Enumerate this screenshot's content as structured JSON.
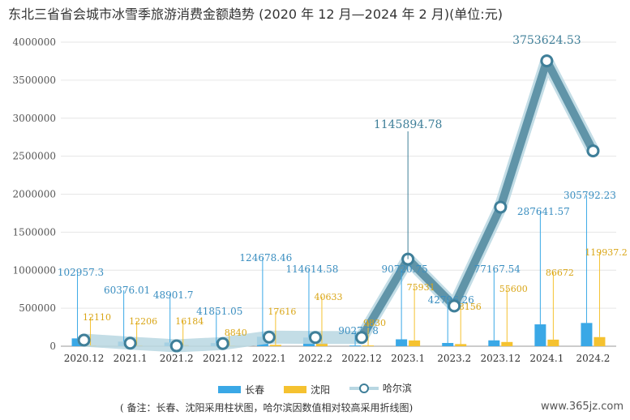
{
  "title": "东北三省省会城市冰雪季旅游消费金额趋势 (2020 年 12 月—2024 年 2 月)(单位:元)",
  "note": "( 备注：长春、沈阳采用柱状图，哈尔滨因数值相对较高采用折线图)",
  "watermark": "www.365jz.com",
  "chart_data": {
    "type": "bar",
    "categories": [
      "2020.12",
      "2021.1",
      "2021.2",
      "2021.12",
      "2022.1",
      "2022.2",
      "2022.12",
      "2023.1",
      "2023.2",
      "2023.12",
      "2024.1",
      "2024.2"
    ],
    "ylim": [
      0,
      4000000
    ],
    "yticks": [
      0,
      500000,
      1000000,
      1500000,
      2000000,
      2500000,
      3000000,
      3500000,
      4000000
    ],
    "legend_position": "bottom",
    "colors": {
      "changchun": "#3aa8e6",
      "shenyang": "#f5c230",
      "harbin_line": "#4f879c",
      "harbin_line_light": "#b8d7e2"
    },
    "series": [
      {
        "name": "长春",
        "kind": "bar",
        "values": [
          102957.3,
          60376.01,
          48901.7,
          41851.05,
          124678.46,
          114614.58,
          9027.78,
          90720.75,
          42796.26,
          77167.54,
          287641.57,
          305792.23
        ],
        "labels": [
          "102957.3",
          "60376.01",
          "48901.7",
          "41851.05",
          "124678.46",
          "114614.58",
          "9027.78",
          "90720.75",
          "42796.26",
          "77167.54",
          "287641.57",
          "305792.23"
        ]
      },
      {
        "name": "沈阳",
        "kind": "bar",
        "values": [
          12110,
          12206,
          16184,
          8840,
          17616,
          40633,
          9830,
          75931,
          28156,
          55600,
          86672,
          119937.2
        ],
        "labels": [
          "12110",
          "12206",
          "16184",
          "8840",
          "17616",
          "40633",
          "9830",
          "75931",
          "28156",
          "55600",
          "86672",
          "119937.2"
        ]
      },
      {
        "name": "哈尔滨",
        "kind": "line",
        "values": [
          80000,
          40000,
          5000,
          35000,
          120000,
          115000,
          115000,
          1145894.78,
          530000,
          1830000,
          3753624.53,
          2570000
        ],
        "labels": [
          "",
          "",
          "",
          "",
          "",
          "",
          "",
          "1145894.78",
          "",
          "",
          "3753624.53",
          ""
        ]
      }
    ]
  }
}
